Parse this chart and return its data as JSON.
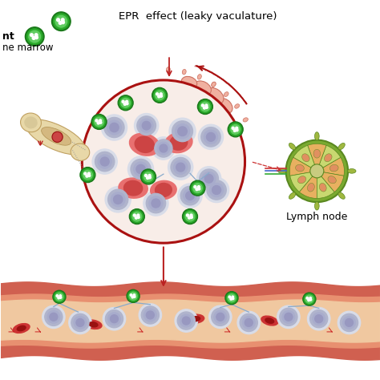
{
  "title": "EPR  effect (leaky vaculature)",
  "lymph_node_label": "Lymph node",
  "bg_color": "#ffffff",
  "blood_vessel_outer_color": "#d06050",
  "blood_vessel_mid_color": "#e89070",
  "blood_vessel_inner_color": "#f0c8a0",
  "main_circle_color": "#aa1111",
  "main_circle_fill": "#f8ede8",
  "nano_dark_green": "#1a7a1a",
  "nano_mid_green": "#2aaa2a",
  "nano_light_green": "#60cc60",
  "nano_dot_color": "#ffffff",
  "wbc_outer": "#d8dce8",
  "wbc_mid": "#b0b4cc",
  "wbc_inner_light": "#c8cce0",
  "wbc_nucleus": "#9090b8",
  "rbc_outer": "#cc3333",
  "rbc_inner": "#991111",
  "bone_fill": "#e8d8a8",
  "bone_edge": "#c0a060",
  "bone_marrow_fill": "#cc8866",
  "leaky_fill": "#f0b0a0",
  "leaky_edge": "#cc7060",
  "lymph_outer_dark": "#5a8820",
  "lymph_outer_mid": "#7aaa30",
  "lymph_segment_light": "#c8d870",
  "lymph_segment_orange": "#e8b060",
  "lymph_center": "#c8cc80",
  "lymph_tendril": "#a0b840",
  "connector_blue": "#88aacc",
  "arrow_red": "#bb2222",
  "dashed_red": "#cc3333",
  "vessel_red_arrow": "#cc2222"
}
